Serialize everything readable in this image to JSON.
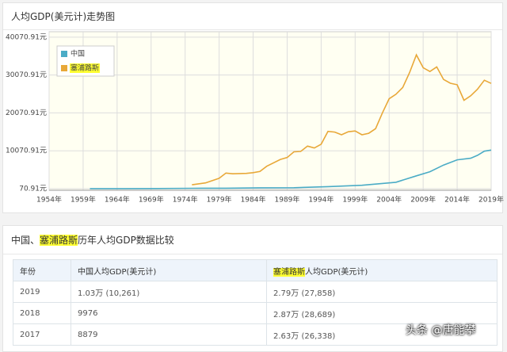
{
  "chart_panel": {
    "title": "人均GDP(美元计)走势图"
  },
  "chart_data": {
    "type": "line",
    "xlim": [
      1954,
      2019
    ],
    "xticks": [
      {
        "value": 1954,
        "label": "1954年"
      },
      {
        "value": 1959,
        "label": "1959年"
      },
      {
        "value": 1964,
        "label": "1964年"
      },
      {
        "value": 1969,
        "label": "1969年"
      },
      {
        "value": 1974,
        "label": "1974年"
      },
      {
        "value": 1979,
        "label": "1979年"
      },
      {
        "value": 1984,
        "label": "1984年"
      },
      {
        "value": 1989,
        "label": "1989年"
      },
      {
        "value": 1994,
        "label": "1994年"
      },
      {
        "value": 1999,
        "label": "1999年"
      },
      {
        "value": 2004,
        "label": "2004年"
      },
      {
        "value": 2009,
        "label": "2009年"
      },
      {
        "value": 2014,
        "label": "2014年"
      },
      {
        "value": 2019,
        "label": "2019年"
      }
    ],
    "ylim": [
      -350,
      41500
    ],
    "yticks": [
      {
        "value": 70.91,
        "label": "70.91元"
      },
      {
        "value": 10070.91,
        "label": "10070.91元"
      },
      {
        "value": 20070.91,
        "label": "20070.91元"
      },
      {
        "value": 30070.91,
        "label": "30070.91元"
      },
      {
        "value": 40070.91,
        "label": "40070.91元"
      }
    ],
    "grid": true,
    "legend": "top-left",
    "series": [
      {
        "name": "中国",
        "color": "#4bacc6",
        "x": [
          1960,
          1965,
          1970,
          1975,
          1980,
          1985,
          1990,
          1995,
          2000,
          2005,
          2008,
          2010,
          2012,
          2014,
          2016,
          2017,
          2018,
          2019
        ],
        "values": [
          89,
          98,
          113,
          178,
          195,
          294,
          318,
          610,
          959,
          1753,
          3468,
          4550,
          6300,
          7678,
          8094,
          8879,
          9976,
          10261
        ]
      },
      {
        "name": "塞浦路斯",
        "color": "#e8a838",
        "x": [
          1975,
          1977,
          1979,
          1980,
          1981,
          1983,
          1984,
          1985,
          1986,
          1988,
          1989,
          1990,
          1991,
          1992,
          1993,
          1994,
          1995,
          1996,
          1997,
          1998,
          1999,
          2000,
          2001,
          2002,
          2003,
          2004,
          2005,
          2006,
          2007,
          2008,
          2009,
          2010,
          2011,
          2012,
          2013,
          2014,
          2015,
          2016,
          2017,
          2018,
          2019
        ],
        "values": [
          1100,
          1600,
          2800,
          4200,
          4000,
          4100,
          4300,
          4600,
          6000,
          7800,
          8300,
          9800,
          9900,
          11300,
          10800,
          11800,
          15200,
          15000,
          14300,
          15100,
          15300,
          14300,
          14700,
          15900,
          20000,
          23800,
          25000,
          26800,
          30700,
          35400,
          32000,
          31000,
          32200,
          28900,
          27900,
          27500,
          23400,
          24600,
          26338,
          28689,
          27858
        ]
      }
    ]
  },
  "table_panel": {
    "title": [
      "中国、",
      "塞浦路斯",
      "历年人均GDP数据比较"
    ]
  },
  "table": {
    "header": [
      "年份",
      "中国人均GDP(美元计)",
      [
        "塞浦路斯",
        "人均GDP(美元计)"
      ]
    ],
    "rows": [
      [
        "2019",
        "1.03万 (10,261)",
        "2.79万 (27,858)"
      ],
      [
        "2018",
        "9976",
        "2.87万 (28,689)"
      ],
      [
        "2017",
        "8879",
        "2.63万 (26,338)"
      ]
    ]
  },
  "watermark": "头条 @唐能攀"
}
